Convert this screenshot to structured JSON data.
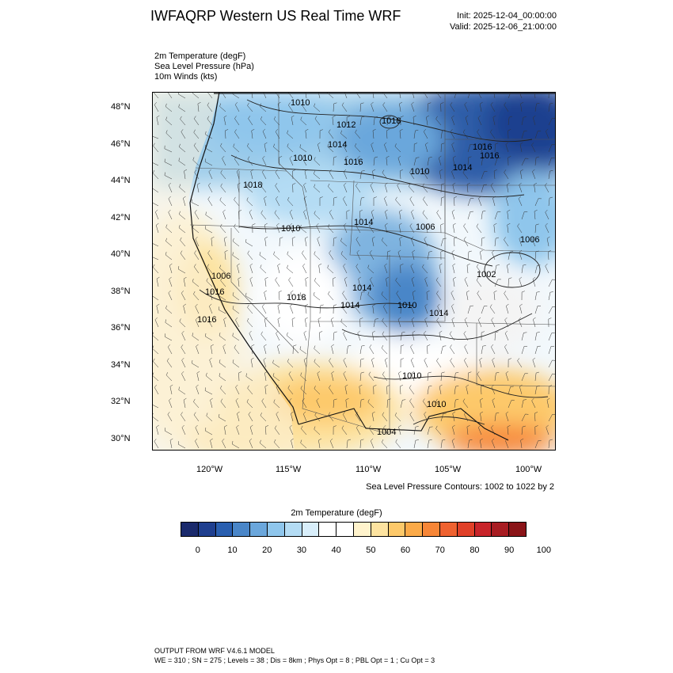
{
  "header": {
    "title": "IWFAQRP Western US Real Time WRF",
    "init": "Init: 2025-12-04_00:00:00",
    "valid": "Valid: 2025-12-06_21:00:00"
  },
  "fields": [
    "2m Temperature   (degF)",
    "Sea Level Pressure   (hPa)",
    "10m Winds   (kts)"
  ],
  "map": {
    "lat_labels": [
      "48°N",
      "46°N",
      "44°N",
      "42°N",
      "40°N",
      "38°N",
      "36°N",
      "34°N",
      "32°N",
      "30°N"
    ],
    "lon_labels": [
      "120°W",
      "115°W",
      "110°W",
      "105°W",
      "100°W"
    ],
    "pressure_labels": [
      "1010",
      "1012",
      "1018",
      "1016",
      "1014",
      "1010",
      "1016",
      "1010",
      "1014",
      "1018",
      "1014",
      "1010",
      "1014",
      "1006",
      "1016",
      "1006",
      "1002",
      "1018",
      "1016",
      "1014",
      "1010",
      "1014",
      "1006",
      "1016",
      "1010",
      "1010",
      "1004"
    ],
    "lon_range": [
      -123.5,
      -98.5
    ],
    "lat_range": [
      29.4,
      48.9
    ]
  },
  "contour_note": "Sea Level Pressure Contours: 1002 to 1022 by 2",
  "colorbar": {
    "title": "2m Temperature  (degF)",
    "colors": [
      "#1a2a6c",
      "#1f3f8f",
      "#2a5fb0",
      "#4a86c8",
      "#6ba7dc",
      "#8fc6ec",
      "#b4dcf4",
      "#d8eefa",
      "#ffffff",
      "#ffffff",
      "#fff3cc",
      "#fde3a0",
      "#fdc96a",
      "#fbaa48",
      "#f78637",
      "#ef6230",
      "#e04028",
      "#c8242a",
      "#a81c22",
      "#8a1418"
    ],
    "labels": [
      "0",
      "10",
      "20",
      "30",
      "40",
      "50",
      "60",
      "70",
      "80",
      "90",
      "100"
    ]
  },
  "footer": {
    "line1": "OUTPUT FROM WRF V4.6.1 MODEL",
    "line2": "WE = 310 ; SN = 275 ; Levels = 38 ; Dis = 8km ; Phys Opt = 8 ; PBL Opt = 1 ; Cu Opt = 3"
  }
}
